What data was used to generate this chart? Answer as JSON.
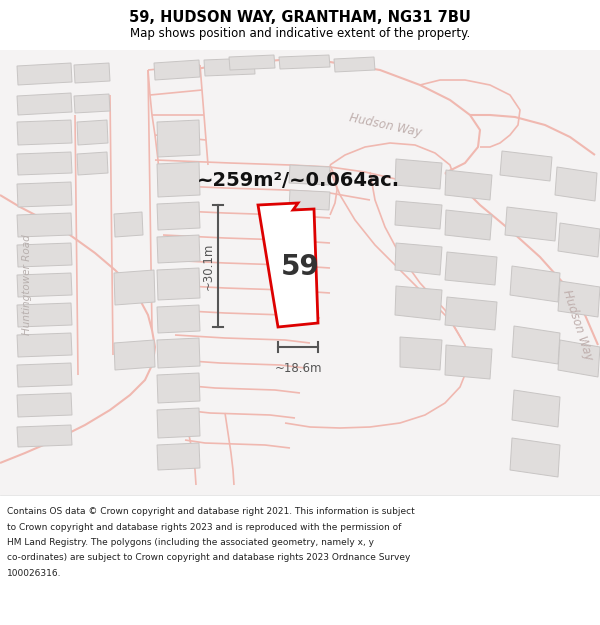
{
  "title_line1": "59, HUDSON WAY, GRANTHAM, NG31 7BU",
  "title_line2": "Map shows position and indicative extent of the property.",
  "area_text": "~259m²/~0.064ac.",
  "width_label": "~18.6m",
  "height_label": "~30.1m",
  "number_label": "59",
  "footer_lines": [
    "Contains OS data © Crown copyright and database right 2021. This information is subject",
    "to Crown copyright and database rights 2023 and is reproduced with the permission of",
    "HM Land Registry. The polygons (including the associated geometry, namely x, y",
    "co-ordinates) are subject to Crown copyright and database rights 2023 Ordnance Survey",
    "100026316."
  ],
  "map_bg": "#f5f3f3",
  "road_color": "#f0b8b0",
  "road_lw": 1.2,
  "building_fill": "#e0dddc",
  "building_edge": "#c8c5c4",
  "plot_color": "#dd0000",
  "dim_color": "#555555",
  "label_color": "#c0b0ae",
  "title_color": "#000000",
  "footer_color": "#222222"
}
